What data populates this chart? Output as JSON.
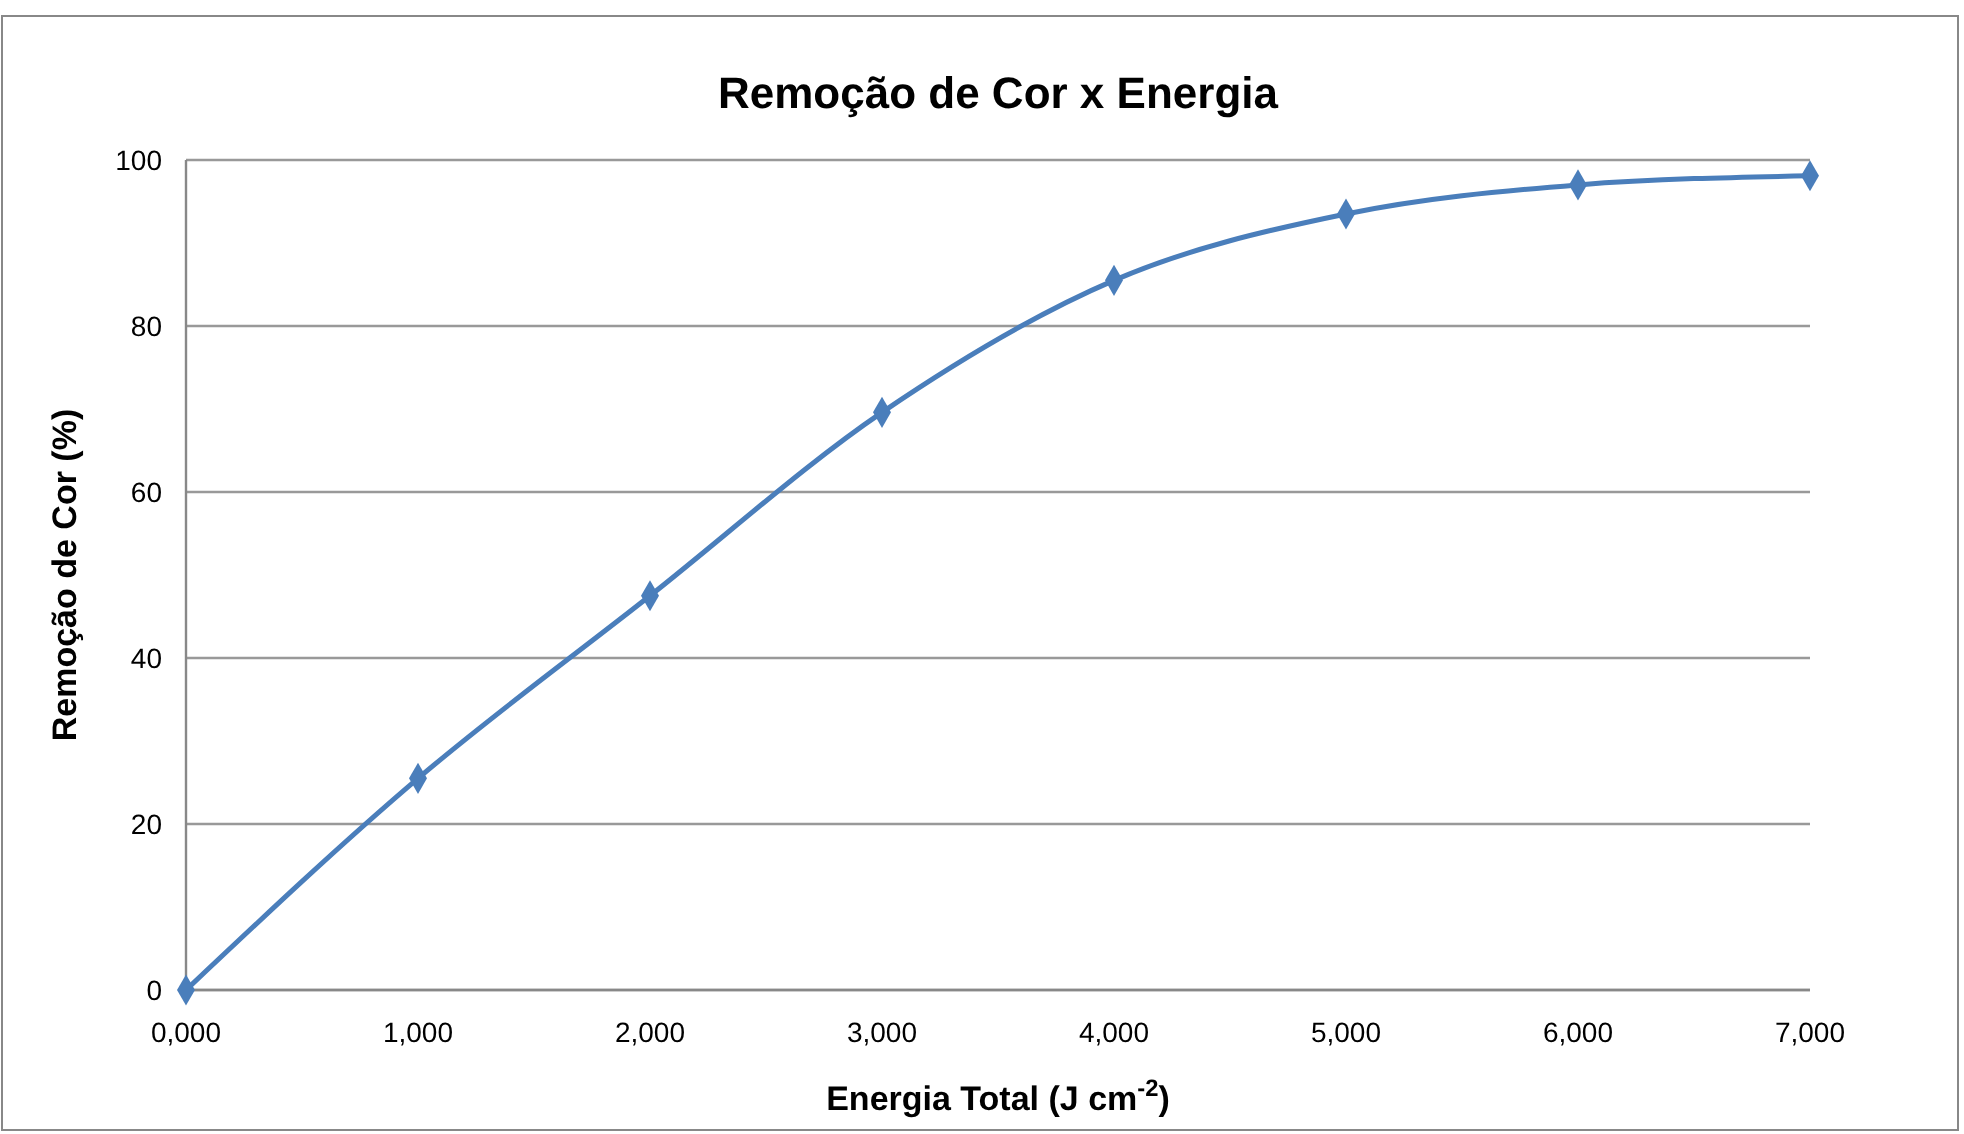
{
  "chart_data": {
    "type": "line",
    "title": "Remoção de Cor x Energia",
    "xlabel": "Energia Total (J cm$^{-2}$)",
    "ylabel": "Remoção de Cor (%)",
    "x": [
      0,
      1000,
      2000,
      3000,
      4000,
      5000,
      6000,
      7000
    ],
    "series": [
      {
        "color": "#4a7ebb",
        "values": [
          0,
          25.5,
          47.5,
          69.6,
          85.5,
          93.5,
          97.0,
          98.1
        ]
      }
    ],
    "xlim": [
      0,
      7000
    ],
    "xticks": [
      {
        "value": 0,
        "label": "0,000"
      },
      {
        "value": 1000,
        "label": "1,000"
      },
      {
        "value": 2000,
        "label": "2,000"
      },
      {
        "value": 3000,
        "label": "3,000"
      },
      {
        "value": 4000,
        "label": "4,000"
      },
      {
        "value": 5000,
        "label": "5,000"
      },
      {
        "value": 6000,
        "label": "6,000"
      },
      {
        "value": 7000,
        "label": "7,000"
      }
    ],
    "ylim": [
      0,
      100
    ],
    "yticks": [
      0,
      20,
      40,
      60,
      80,
      100
    ],
    "grid": "y",
    "marker": "diamond",
    "line_style": "solid"
  }
}
